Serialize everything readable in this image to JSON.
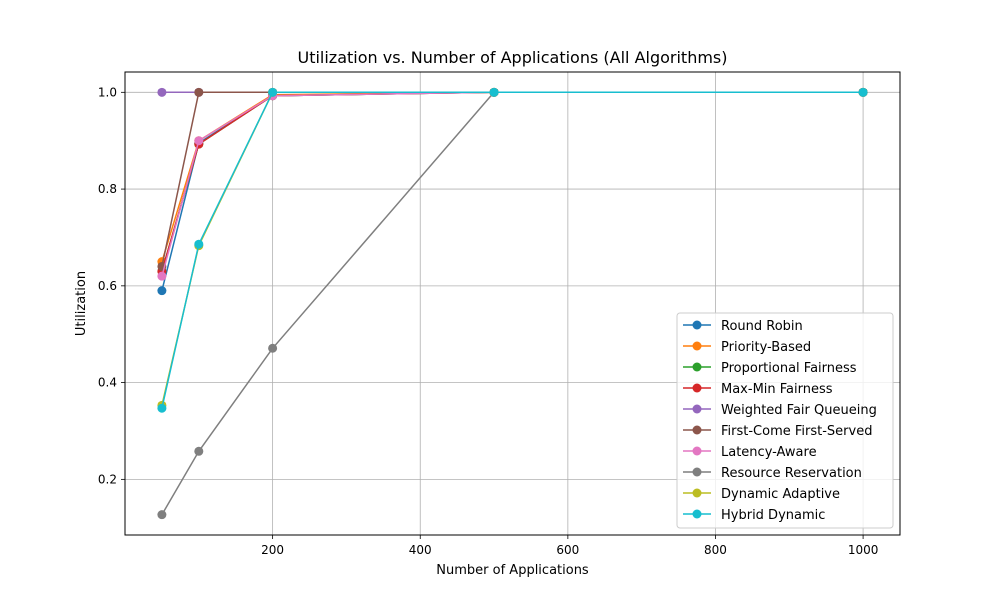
{
  "chart_data": {
    "type": "line",
    "title": "Utilization vs. Number of Applications (All Algorithms)",
    "xlabel": "Number of Applications",
    "ylabel": "Utilization",
    "xlim": [
      0,
      1050
    ],
    "ylim": [
      0.085,
      1.042
    ],
    "xticks": [
      200,
      400,
      600,
      800,
      1000
    ],
    "yticks": [
      0.2,
      0.4,
      0.6,
      0.8,
      1.0
    ],
    "grid": true,
    "legend_position": "bottom-right",
    "x": [
      50,
      100,
      200,
      500,
      1000
    ],
    "series": [
      {
        "name": "Round Robin",
        "color": "#1f77b4",
        "values": [
          0.59,
          0.895,
          0.993,
          1.0,
          1.0
        ]
      },
      {
        "name": "Priority-Based",
        "color": "#ff7f0e",
        "values": [
          0.65,
          0.9,
          0.995,
          1.0,
          1.0
        ]
      },
      {
        "name": "Proportional Fairness",
        "color": "#2ca02c",
        "values": [
          0.63,
          0.893,
          0.993,
          1.0,
          1.0
        ]
      },
      {
        "name": "Max-Min Fairness",
        "color": "#d62728",
        "values": [
          0.63,
          0.893,
          0.993,
          1.0,
          1.0
        ]
      },
      {
        "name": "Weighted Fair Queueing",
        "color": "#9467bd",
        "values": [
          1.0,
          1.0,
          1.0,
          1.0,
          1.0
        ]
      },
      {
        "name": "First-Come First-Served",
        "color": "#8c564b",
        "values": [
          0.64,
          1.0,
          1.0,
          1.0,
          1.0
        ]
      },
      {
        "name": "Latency-Aware",
        "color": "#e377c2",
        "values": [
          0.62,
          0.9,
          0.993,
          1.0,
          1.0
        ]
      },
      {
        "name": "Resource Reservation",
        "color": "#7f7f7f",
        "values": [
          0.127,
          0.258,
          0.471,
          1.0,
          1.0
        ]
      },
      {
        "name": "Dynamic Adaptive",
        "color": "#bcbd22",
        "values": [
          0.353,
          0.683,
          1.0,
          1.0,
          1.0
        ]
      },
      {
        "name": "Hybrid Dynamic",
        "color": "#17becf",
        "values": [
          0.347,
          0.686,
          1.0,
          1.0,
          1.0
        ]
      }
    ]
  }
}
